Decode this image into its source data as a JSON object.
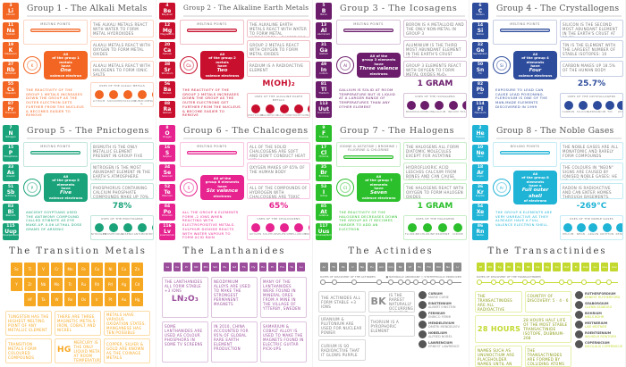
{
  "groups": [
    {
      "title": "Group 1 - The Alkali Metals",
      "color": "#f26522",
      "elements": [
        [
          "3",
          "Li",
          "Lithium"
        ],
        [
          "11",
          "Na",
          "Sodium"
        ],
        [
          "19",
          "K",
          "Potassium"
        ],
        [
          "37",
          "Rb",
          "Rubidium"
        ],
        [
          "55",
          "Cs",
          "Caesium"
        ],
        [
          "87",
          "Fr",
          "Francium"
        ]
      ],
      "melting": "Melting Points",
      "atom": "K",
      "valence": [
        "All",
        "of the group 1 metals",
        "have",
        "One",
        "valence electron"
      ],
      "reactivity": "The reactivity of the group 1 metals increases down the group as the outer electron gets further from the nucleus & becomes easier to remove",
      "facts": [
        "The alkali metals react with water to form metal hydroxides",
        "Alkali metals react with oxygen to form metal oxides",
        "Alkali metals react with halogens to form ionic salts"
      ],
      "big": "",
      "uses_title": "Uses of the alkali metals",
      "uses": [
        "Lithium",
        "Sodium",
        "Potassium",
        "Rubidium & Caesium",
        "Francium"
      ]
    },
    {
      "title": "Group 2 - The Alkaline Earth Metals",
      "color": "#c8102e",
      "elements": [
        [
          "4",
          "Be",
          "Beryllium"
        ],
        [
          "12",
          "Mg",
          "Magnesium"
        ],
        [
          "20",
          "Ca",
          "Calcium"
        ],
        [
          "38",
          "Sr",
          "Strontium"
        ],
        [
          "56",
          "Ba",
          "Barium"
        ],
        [
          "88",
          "Ra",
          "Radium"
        ]
      ],
      "melting": "Melting Points",
      "atom": "Ca",
      "valence": [
        "All",
        "of the group 2 metals",
        "have",
        "Two",
        "valence electrons"
      ],
      "reactivity": "The reactivity of the group 2 metals increases down the group as the outer electrons get further from the nucleus & become easier to remove",
      "facts": [
        "The alkaline earth metals react with water to form metal hydroxides... except for Be",
        "Group 2 metals react with oxygen to form metal oxides",
        "Radium is a radioactive element"
      ],
      "big": "M(OH)₂",
      "uses_title": "Uses of the alkaline earth metals",
      "uses": [
        "Beryllium",
        "Magnesium",
        "Calcium",
        "Strontium",
        "Barium"
      ]
    },
    {
      "title": "Group 3 - The Icosagens",
      "color": "#6b1d6b",
      "elements": [
        [
          "5",
          "B",
          "Boron"
        ],
        [
          "13",
          "Al",
          "Aluminium"
        ],
        [
          "31",
          "Ga",
          "Gallium"
        ],
        [
          "49",
          "In",
          "Indium"
        ],
        [
          "81",
          "Tl",
          "Thallium"
        ],
        [
          "113",
          "Uut",
          "Ununtrium"
        ]
      ],
      "melting": "Melting Points",
      "atom": "Al",
      "valence": [
        "All of the",
        "group 3 elements",
        "have",
        "Three valence",
        "electrons"
      ],
      "reactivity": "Gallium is solid at room temperature but is liquid at a larger range of temperatures than any other element",
      "facts": [
        "Boron is a metalloid and the only non-metal in group 3",
        "Aluminium is the third most abundant element in the Earth's crust (8.1%)",
        "Group 3 elements react with oxygen to form metal oxides M₂O₃"
      ],
      "big": "1 GRAM",
      "uses_title": "Uses of the icosagens",
      "uses": [
        "Boron",
        "Aluminium",
        "Gallium",
        "Indium",
        "Thallium"
      ]
    },
    {
      "title": "Group 4 - The Crystallogens",
      "color": "#2e4c9c",
      "elements": [
        [
          "6",
          "C",
          "Carbon"
        ],
        [
          "14",
          "Si",
          "Silicon"
        ],
        [
          "32",
          "Ge",
          "Germanium"
        ],
        [
          "50",
          "Sn",
          "Tin"
        ],
        [
          "82",
          "Pb",
          "Lead"
        ],
        [
          "114",
          "Fl",
          "Flerovium"
        ]
      ],
      "melting": "Melting Points",
      "atom": "Si",
      "valence": [
        "All",
        "of the group 4 elements",
        "have",
        "Four",
        "valence electrons"
      ],
      "reactivity": "Exposure to lead can cause lead poisoning. Flerovium is one of the man-made elements discovered in 1999",
      "facts": [
        "Silicon is the second most abundant element in the Earth's crust at 25.7%",
        "Tin is the element with the largest number of stable isotopes: 10",
        "Carbon makes up 18.5% of the human body"
      ],
      "big": "25.7%",
      "uses_title": "Uses of the crystallogens",
      "uses": [
        "Carbon",
        "Silicon",
        "Germanium",
        "Tin",
        "Lead"
      ]
    },
    {
      "title": "Group 5 - The Pnictogens",
      "color": "#1aa37a",
      "elements": [
        [
          "7",
          "N",
          "Nitrogen"
        ],
        [
          "15",
          "P",
          "Phosphorus"
        ],
        [
          "33",
          "As",
          "Arsenic"
        ],
        [
          "51",
          "Sb",
          "Antimony"
        ],
        [
          "83",
          "Bi",
          "Bismuth"
        ],
        [
          "115",
          "Uup",
          "Ununpentium"
        ]
      ],
      "melting": "Melting Points",
      "atom": "P",
      "valence": [
        "All",
        "of the group 5 elements",
        "have",
        "Five",
        "valence electrons"
      ],
      "reactivity": "Ancient Egyptians used the antimony compound called stibnite as eye make-up. 0.06 lethal dose grams of arsenic",
      "facts": [
        "Bismuth is the only metallic element present in group five",
        "Nitrogen is the most abundant element in the Earth's atmosphere (78%)",
        "Phosphorus containing calcium phosphate compounds make up 70% of human bone"
      ],
      "big": "78%",
      "uses_title": "Uses of the pnictogens",
      "uses": [
        "Nitrogen",
        "Phosphorus",
        "Arsenic",
        "Antimony",
        "Bismuth"
      ]
    },
    {
      "title": "Group 6 - The Chalcogens",
      "color": "#e6238f",
      "elements": [
        [
          "8",
          "O",
          "Oxygen"
        ],
        [
          "16",
          "S",
          "Sulphur"
        ],
        [
          "34",
          "Se",
          "Selenium"
        ],
        [
          "52",
          "Te",
          "Tellurium"
        ],
        [
          "84",
          "Po",
          "Polonium"
        ],
        [
          "116",
          "Lv",
          "Livermorium"
        ]
      ],
      "melting": "Melting Points",
      "atom": "S",
      "valence": [
        "All of the",
        "group 6 elements",
        "have",
        "Six valence",
        "electrons"
      ],
      "reactivity": "All the group 6 elements form -2 ions when reacting with electropositive metals. Sulphur dioxide reacts with water vapour to form acid rain",
      "facts": [
        "All of the solid chalcogens are soft and don't conduct heat well",
        "Oxygen makes up 65% of the human body",
        "All of the compounds of hydrogen with chalcogens are toxic apart from water"
      ],
      "big": "65%",
      "uses_title": "Uses of the chalcogens",
      "uses": [
        "Oxygen",
        "Sulphur",
        "Selenium",
        "Tellurium",
        "Polonium"
      ]
    },
    {
      "title": "Group 7 - The Halogens",
      "color": "#2cbf2c",
      "elements": [
        [
          "9",
          "F",
          "Fluorine"
        ],
        [
          "17",
          "Cl",
          "Chlorine"
        ],
        [
          "35",
          "Br",
          "Bromine"
        ],
        [
          "53",
          "I",
          "Iodine"
        ],
        [
          "85",
          "At",
          "Astatine"
        ],
        [
          "117",
          "Uus",
          "Ununseptium"
        ]
      ],
      "melting": "Iodine & Astatine / Bromine / Fluorine & Chlorine",
      "atom": "Cl",
      "valence": [
        "All",
        "of the group 7 elements",
        "have",
        "Seven",
        "valence electrons"
      ],
      "reactivity": "The reactivity of the halogens decreases down the group as it becomes harder to add an electron",
      "facts": [
        "The halogens all form diatomic molecules except for astatine",
        "Hydrofluoric acid leeches calcium from bones and can cause very painful burns. It also dissolves glass",
        "The halogens react with oxygen to form halogen oxides"
      ],
      "big": "1 GRAM",
      "uses_title": "Uses of the halogens",
      "uses": [
        "Fluorine",
        "Chlorine",
        "Bromine",
        "Iodine"
      ]
    },
    {
      "title": "Group 8 - The Noble Gases",
      "color": "#1fb3d6",
      "elements": [
        [
          "2",
          "He",
          "Helium"
        ],
        [
          "10",
          "Ne",
          "Neon"
        ],
        [
          "18",
          "Ar",
          "Argon"
        ],
        [
          "36",
          "Kr",
          "Krypton"
        ],
        [
          "54",
          "Xe",
          "Xenon"
        ],
        [
          "86",
          "Rn",
          "Radon"
        ]
      ],
      "melting": "Boiling Points",
      "atom": "Ar",
      "valence": [
        "All",
        "of the group 8 elements",
        "have a",
        "Full outer shell",
        "of electrons"
      ],
      "reactivity": "The group 8 elements are very unreactive as they already have a full valence electron shell",
      "facts": [
        "The noble gases are all monatomic and rarely form compounds",
        "The colours in \"neon\" signs are caused by ionised noble gases: He Ne Ar Kr Xe",
        "Radon is radioactive and can enter homes through basements. Helium is the second most abundant element in the universe"
      ],
      "big": "-269°C",
      "uses_title": "Uses of the noble gases",
      "uses": [
        "Helium",
        "Neon",
        "Argon",
        "Krypton",
        "Xenon"
      ]
    }
  ],
  "transition": {
    "title": "The Transition Metals",
    "color": "#f7a823",
    "elements": [
      "Sc",
      "Ti",
      "V",
      "Cr",
      "Mn",
      "Fe",
      "Co",
      "Ni",
      "Cu",
      "Zn",
      "Y",
      "Zr",
      "Nb",
      "Mo",
      "Tc",
      "Ru",
      "Rh",
      "Pd",
      "Ag",
      "Cd",
      "Hf",
      "Ta",
      "W",
      "Re",
      "Os",
      "Ir",
      "Pt",
      "Au",
      "Hg"
    ],
    "facts": [
      "Tungsten has the highest melting point of any metallic element",
      "There are three magnetic metals: Iron, Cobalt and Nickel",
      "Transition metals have various oxidation states. Manganese has ten possible oxidation states",
      "Transition metals form coloured compounds",
      "Mercury is the only liquid metal at room temperature",
      "Copper, silver & gold are known as the coinage metals"
    ],
    "big": "Hg"
  },
  "lanthanides": {
    "title": "The Lanthanides",
    "color": "#9b4d9b",
    "elements": [
      "La",
      "Ce",
      "Pr",
      "Nd",
      "Pm",
      "Sm",
      "Eu",
      "Gd",
      "Tb",
      "Dy",
      "Ho",
      "Er",
      "Tm",
      "Yb",
      "Lu"
    ],
    "facts": [
      "The lanthanides all form stable +3 ions",
      "Neodymium alloys are used to make the strongest permanent magnets",
      "Many of the lanthanides were found in mineral ores from a mine in the village of Ytterby, Sweden",
      "Some lanthanides are used as colour phosphors in some TV screens",
      "In 2010, China accounted for 95% of global rare earth element production",
      "Samarium & cobalt alloy is used to make the magnets found in electric guitar pick-ups"
    ],
    "big": "Ln₂O₃"
  },
  "actinides": {
    "title": "The Actinides",
    "color": "#8c8c8c",
    "elements": [
      "Ac",
      "Th",
      "Pa",
      "U",
      "Np",
      "Pu",
      "Am",
      "Cm",
      "Bk",
      "Cf",
      "Es",
      "Fm",
      "Md",
      "No",
      "Lr"
    ],
    "timeline_label": "Dates of discovery of the actinides",
    "legend": [
      "Naturally abundant",
      "Synthetically produced"
    ],
    "facts": [
      "The actinides all form stable +3 ions",
      "Berkelium is the rarest naturally occurring element",
      "Uranium & plutonium are used for nuclear power",
      "Thorium is a pyrophoric element",
      "Curium is so radioactive that it glows purple"
    ],
    "big": "Bk",
    "people": [
      [
        "Curium",
        "Marie Curie"
      ],
      [
        "Einsteinium",
        "Albert Einstein"
      ],
      [
        "Fermium",
        "Enrico Fermi"
      ],
      [
        "Mendelevium",
        "Dmitri Mendeleev"
      ],
      [
        "Nobelium",
        "Alfred Nobel"
      ],
      [
        "Lawrencium",
        "Ernest Lawrence"
      ]
    ]
  },
  "transactinides": {
    "title": "The Transactinides",
    "color": "#c3d930",
    "elements": [
      "Rf",
      "Db",
      "Sg",
      "Bh",
      "Hs",
      "Mt",
      "Ds",
      "Rg",
      "Cn",
      "Uut",
      "Fl",
      "Uup",
      "Lv",
      "Uus",
      "Uuo"
    ],
    "timeline_label": "Dates of discovery of the transactinides",
    "facts": [
      "The transactinides are all radioactive",
      "Country of discovery: 5 · 4 · 6",
      "28 hours half life of the most stable transactinide isotope, Dubnium-268",
      "Names such as Ununoctium are placeholder names until an official name is chosen",
      "The transactinides are formed by colliding atoms of different elements"
    ],
    "big": "28 HOURS",
    "people": [
      [
        "Rutherfordium",
        "Ernest Rutherford"
      ],
      [
        "Seaborgium",
        "Glenn Seaborg"
      ],
      [
        "Bohrium",
        "Niels Bohr"
      ],
      [
        "Meitnerium",
        "Lise Meitner"
      ],
      [
        "Roentgenium",
        "Wilhelm Röntgen"
      ],
      [
        "Copernicium",
        "Nicolaus Copernicus"
      ]
    ]
  }
}
